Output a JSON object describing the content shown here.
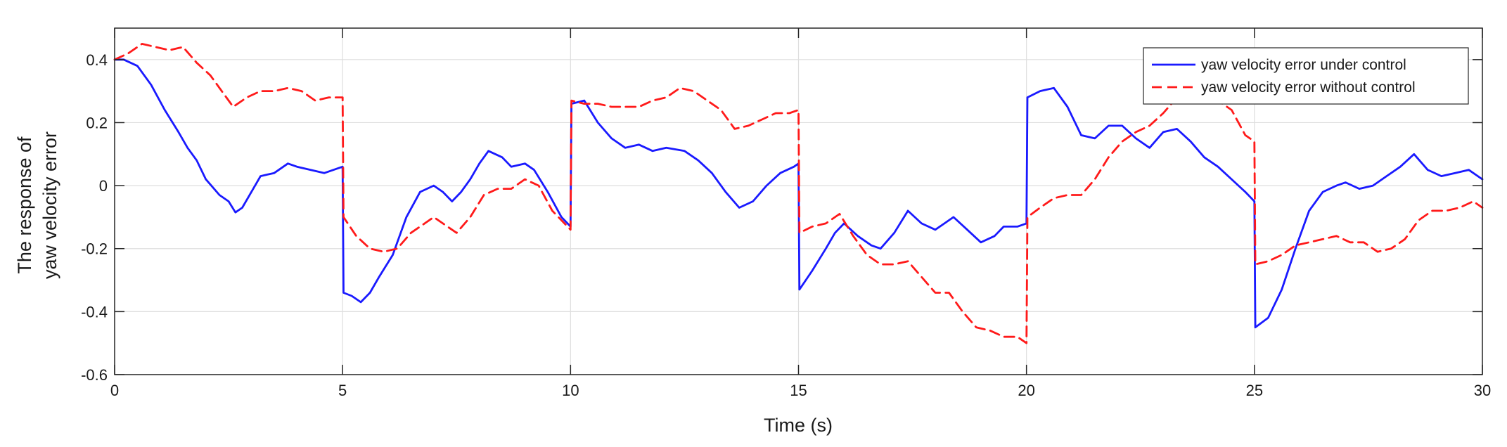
{
  "chart_data": {
    "type": "line",
    "title": "",
    "xlabel": "Time (s)",
    "ylabel_lines": [
      "The response of",
      "yaw velocity error"
    ],
    "xlim": [
      0,
      30
    ],
    "ylim": [
      -0.6,
      0.5
    ],
    "xticks": [
      0,
      5,
      10,
      15,
      20,
      25,
      30
    ],
    "xtick_labels": [
      "0",
      "5",
      "10",
      "15",
      "20",
      "25",
      "30"
    ],
    "yticks": [
      -0.6,
      -0.4,
      -0.2,
      0,
      0.2,
      0.4
    ],
    "ytick_labels": [
      "-0.6",
      "-0.4",
      "-0.2",
      "0",
      "0.2",
      "0.4"
    ],
    "grid": true,
    "legend_position": "top-right",
    "series": [
      {
        "name": "yaw velocity error under control",
        "color": "#1a1aff",
        "dash": "solid",
        "points": [
          [
            0,
            0.4
          ],
          [
            0.2,
            0.4
          ],
          [
            0.5,
            0.38
          ],
          [
            0.8,
            0.32
          ],
          [
            1.1,
            0.24
          ],
          [
            1.4,
            0.17
          ],
          [
            1.6,
            0.12
          ],
          [
            1.8,
            0.08
          ],
          [
            2.0,
            0.02
          ],
          [
            2.3,
            -0.03
          ],
          [
            2.5,
            -0.05
          ],
          [
            2.65,
            -0.085
          ],
          [
            2.8,
            -0.07
          ],
          [
            3.0,
            -0.02
          ],
          [
            3.2,
            0.03
          ],
          [
            3.5,
            0.04
          ],
          [
            3.8,
            0.07
          ],
          [
            4.0,
            0.06
          ],
          [
            4.3,
            0.05
          ],
          [
            4.6,
            0.04
          ],
          [
            4.9,
            0.055
          ],
          [
            5.0,
            0.06
          ],
          [
            5.02,
            -0.34
          ],
          [
            5.2,
            -0.35
          ],
          [
            5.4,
            -0.37
          ],
          [
            5.6,
            -0.34
          ],
          [
            5.8,
            -0.29
          ],
          [
            6.1,
            -0.22
          ],
          [
            6.4,
            -0.1
          ],
          [
            6.7,
            -0.02
          ],
          [
            7.0,
            0.0
          ],
          [
            7.2,
            -0.02
          ],
          [
            7.4,
            -0.05
          ],
          [
            7.6,
            -0.02
          ],
          [
            7.8,
            0.02
          ],
          [
            8.0,
            0.07
          ],
          [
            8.2,
            0.11
          ],
          [
            8.5,
            0.09
          ],
          [
            8.7,
            0.06
          ],
          [
            9.0,
            0.07
          ],
          [
            9.2,
            0.05
          ],
          [
            9.5,
            -0.02
          ],
          [
            9.8,
            -0.1
          ],
          [
            10.0,
            -0.13
          ],
          [
            10.02,
            0.26
          ],
          [
            10.3,
            0.27
          ],
          [
            10.6,
            0.2
          ],
          [
            10.9,
            0.15
          ],
          [
            11.2,
            0.12
          ],
          [
            11.5,
            0.13
          ],
          [
            11.8,
            0.11
          ],
          [
            12.1,
            0.12
          ],
          [
            12.5,
            0.11
          ],
          [
            12.8,
            0.08
          ],
          [
            13.1,
            0.04
          ],
          [
            13.4,
            -0.02
          ],
          [
            13.7,
            -0.07
          ],
          [
            14.0,
            -0.05
          ],
          [
            14.3,
            0.0
          ],
          [
            14.6,
            0.04
          ],
          [
            14.9,
            0.06
          ],
          [
            15.0,
            0.07
          ],
          [
            15.02,
            -0.33
          ],
          [
            15.3,
            -0.27
          ],
          [
            15.6,
            -0.2
          ],
          [
            15.8,
            -0.15
          ],
          [
            16.0,
            -0.12
          ],
          [
            16.3,
            -0.16
          ],
          [
            16.6,
            -0.19
          ],
          [
            16.8,
            -0.2
          ],
          [
            17.1,
            -0.15
          ],
          [
            17.4,
            -0.08
          ],
          [
            17.7,
            -0.12
          ],
          [
            18.0,
            -0.14
          ],
          [
            18.2,
            -0.12
          ],
          [
            18.4,
            -0.1
          ],
          [
            18.7,
            -0.14
          ],
          [
            19.0,
            -0.18
          ],
          [
            19.3,
            -0.16
          ],
          [
            19.5,
            -0.13
          ],
          [
            19.8,
            -0.13
          ],
          [
            20.0,
            -0.12
          ],
          [
            20.02,
            0.28
          ],
          [
            20.3,
            0.3
          ],
          [
            20.6,
            0.31
          ],
          [
            20.9,
            0.25
          ],
          [
            21.2,
            0.16
          ],
          [
            21.5,
            0.15
          ],
          [
            21.8,
            0.19
          ],
          [
            22.1,
            0.19
          ],
          [
            22.4,
            0.15
          ],
          [
            22.7,
            0.12
          ],
          [
            23.0,
            0.17
          ],
          [
            23.3,
            0.18
          ],
          [
            23.6,
            0.14
          ],
          [
            23.9,
            0.09
          ],
          [
            24.2,
            0.06
          ],
          [
            24.5,
            0.02
          ],
          [
            24.8,
            -0.02
          ],
          [
            25.0,
            -0.05
          ],
          [
            25.02,
            -0.45
          ],
          [
            25.3,
            -0.42
          ],
          [
            25.6,
            -0.33
          ],
          [
            25.9,
            -0.2
          ],
          [
            26.2,
            -0.08
          ],
          [
            26.5,
            -0.02
          ],
          [
            26.8,
            0.0
          ],
          [
            27.0,
            0.01
          ],
          [
            27.3,
            -0.01
          ],
          [
            27.6,
            0.0
          ],
          [
            27.9,
            0.03
          ],
          [
            28.2,
            0.06
          ],
          [
            28.5,
            0.1
          ],
          [
            28.8,
            0.05
          ],
          [
            29.1,
            0.03
          ],
          [
            29.4,
            0.04
          ],
          [
            29.7,
            0.05
          ],
          [
            30.0,
            0.02
          ]
        ]
      },
      {
        "name": "yaw velocity error without control",
        "color": "#ff1a1a",
        "dash": "dashed",
        "points": [
          [
            0,
            0.4
          ],
          [
            0.3,
            0.42
          ],
          [
            0.6,
            0.45
          ],
          [
            0.9,
            0.44
          ],
          [
            1.2,
            0.43
          ],
          [
            1.5,
            0.44
          ],
          [
            1.8,
            0.39
          ],
          [
            2.1,
            0.35
          ],
          [
            2.4,
            0.29
          ],
          [
            2.6,
            0.25
          ],
          [
            2.9,
            0.28
          ],
          [
            3.2,
            0.3
          ],
          [
            3.5,
            0.3
          ],
          [
            3.8,
            0.31
          ],
          [
            4.1,
            0.3
          ],
          [
            4.4,
            0.27
          ],
          [
            4.7,
            0.28
          ],
          [
            5.0,
            0.28
          ],
          [
            5.02,
            -0.1
          ],
          [
            5.3,
            -0.16
          ],
          [
            5.6,
            -0.2
          ],
          [
            5.9,
            -0.21
          ],
          [
            6.2,
            -0.2
          ],
          [
            6.5,
            -0.15
          ],
          [
            6.8,
            -0.12
          ],
          [
            7.0,
            -0.1
          ],
          [
            7.2,
            -0.12
          ],
          [
            7.5,
            -0.15
          ],
          [
            7.8,
            -0.1
          ],
          [
            8.1,
            -0.03
          ],
          [
            8.4,
            -0.01
          ],
          [
            8.7,
            -0.01
          ],
          [
            9.0,
            0.02
          ],
          [
            9.3,
            0.0
          ],
          [
            9.6,
            -0.08
          ],
          [
            10.0,
            -0.14
          ],
          [
            10.02,
            0.27
          ],
          [
            10.3,
            0.26
          ],
          [
            10.6,
            0.26
          ],
          [
            10.9,
            0.25
          ],
          [
            11.2,
            0.25
          ],
          [
            11.5,
            0.25
          ],
          [
            11.8,
            0.27
          ],
          [
            12.1,
            0.28
          ],
          [
            12.4,
            0.31
          ],
          [
            12.7,
            0.3
          ],
          [
            13.0,
            0.27
          ],
          [
            13.3,
            0.24
          ],
          [
            13.6,
            0.18
          ],
          [
            13.9,
            0.19
          ],
          [
            14.2,
            0.21
          ],
          [
            14.5,
            0.23
          ],
          [
            14.8,
            0.23
          ],
          [
            15.0,
            0.24
          ],
          [
            15.02,
            -0.15
          ],
          [
            15.3,
            -0.13
          ],
          [
            15.6,
            -0.12
          ],
          [
            15.9,
            -0.09
          ],
          [
            16.2,
            -0.16
          ],
          [
            16.5,
            -0.22
          ],
          [
            16.8,
            -0.25
          ],
          [
            17.1,
            -0.25
          ],
          [
            17.4,
            -0.24
          ],
          [
            17.7,
            -0.29
          ],
          [
            18.0,
            -0.34
          ],
          [
            18.3,
            -0.34
          ],
          [
            18.6,
            -0.4
          ],
          [
            18.9,
            -0.45
          ],
          [
            19.2,
            -0.46
          ],
          [
            19.5,
            -0.48
          ],
          [
            19.8,
            -0.48
          ],
          [
            20.0,
            -0.5
          ],
          [
            20.02,
            -0.1
          ],
          [
            20.3,
            -0.07
          ],
          [
            20.6,
            -0.04
          ],
          [
            20.9,
            -0.03
          ],
          [
            21.2,
            -0.03
          ],
          [
            21.5,
            0.02
          ],
          [
            21.8,
            0.09
          ],
          [
            22.1,
            0.14
          ],
          [
            22.4,
            0.17
          ],
          [
            22.7,
            0.19
          ],
          [
            23.0,
            0.23
          ],
          [
            23.3,
            0.28
          ],
          [
            23.6,
            0.29
          ],
          [
            23.9,
            0.28
          ],
          [
            24.2,
            0.27
          ],
          [
            24.5,
            0.24
          ],
          [
            24.8,
            0.16
          ],
          [
            25.0,
            0.14
          ],
          [
            25.02,
            -0.25
          ],
          [
            25.3,
            -0.24
          ],
          [
            25.6,
            -0.22
          ],
          [
            25.9,
            -0.19
          ],
          [
            26.2,
            -0.18
          ],
          [
            26.5,
            -0.17
          ],
          [
            26.8,
            -0.16
          ],
          [
            27.1,
            -0.18
          ],
          [
            27.4,
            -0.18
          ],
          [
            27.7,
            -0.21
          ],
          [
            28.0,
            -0.2
          ],
          [
            28.3,
            -0.17
          ],
          [
            28.6,
            -0.11
          ],
          [
            28.9,
            -0.08
          ],
          [
            29.2,
            -0.08
          ],
          [
            29.5,
            -0.07
          ],
          [
            29.8,
            -0.05
          ],
          [
            30.0,
            -0.07
          ]
        ]
      }
    ]
  }
}
